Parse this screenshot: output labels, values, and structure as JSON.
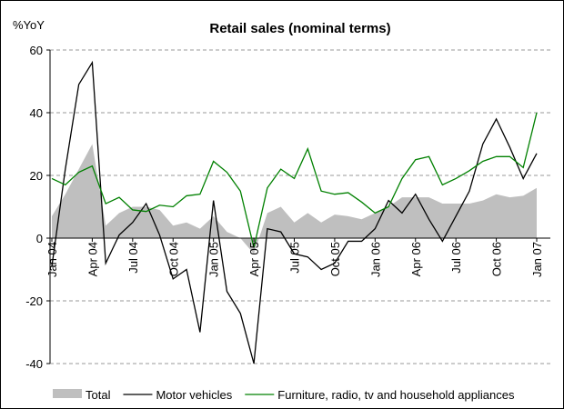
{
  "chart_data": {
    "type": "line",
    "title": "Retail sales (nominal terms)",
    "y_label": "%YoY",
    "categories": [
      "Jan 04",
      null,
      null,
      "Apr 04",
      null,
      null,
      "Jul 04",
      null,
      null,
      "Oct 04",
      null,
      null,
      "Jan 05",
      null,
      null,
      "Apr 05",
      null,
      null,
      "Jul 05",
      null,
      null,
      "Oct 05",
      null,
      null,
      "Jan 06",
      null,
      null,
      "Apr 06",
      null,
      null,
      "Jul 06",
      null,
      null,
      "Oct 06",
      null,
      null,
      "Jan 07"
    ],
    "series": [
      {
        "name": "Total",
        "kind": "area",
        "color": "#bfbfbf",
        "values": [
          7,
          14,
          22,
          30,
          4,
          8,
          10,
          10,
          9,
          4,
          5,
          3,
          7,
          2,
          0,
          -5,
          8,
          10,
          5,
          8,
          5,
          7.5,
          7,
          6,
          8,
          10,
          13,
          13,
          13,
          11,
          11,
          11,
          12,
          14,
          13,
          13.5,
          16
        ]
      },
      {
        "name": "Motor vehicles",
        "kind": "line",
        "color": "#000000",
        "values": [
          -9,
          22,
          49,
          56,
          -8,
          1,
          5,
          11,
          1,
          -13,
          -10,
          -30,
          12,
          -17,
          -24,
          -40,
          3,
          2,
          -5,
          -6,
          -10,
          -8,
          -1,
          -1,
          3,
          12,
          8,
          14,
          6,
          -1,
          7,
          15,
          30,
          38,
          29,
          19,
          27
        ]
      },
      {
        "name": "Furniture, radio, tv and household appliances",
        "kind": "line",
        "color": "#008000",
        "values": [
          19,
          17,
          21,
          23,
          11,
          13,
          9,
          8.5,
          10.5,
          10,
          13.5,
          14,
          24.5,
          21,
          15,
          -3,
          16,
          22,
          19,
          28.5,
          15,
          14,
          14.5,
          11.5,
          8,
          10,
          19,
          25,
          26,
          17,
          19,
          21.5,
          24.5,
          26,
          26,
          22.5,
          40
        ]
      }
    ],
    "ylim": [
      -40,
      60
    ],
    "yticks": [
      -40,
      -20,
      0,
      20,
      40,
      60
    ],
    "grid": true,
    "legend": "bottom"
  }
}
